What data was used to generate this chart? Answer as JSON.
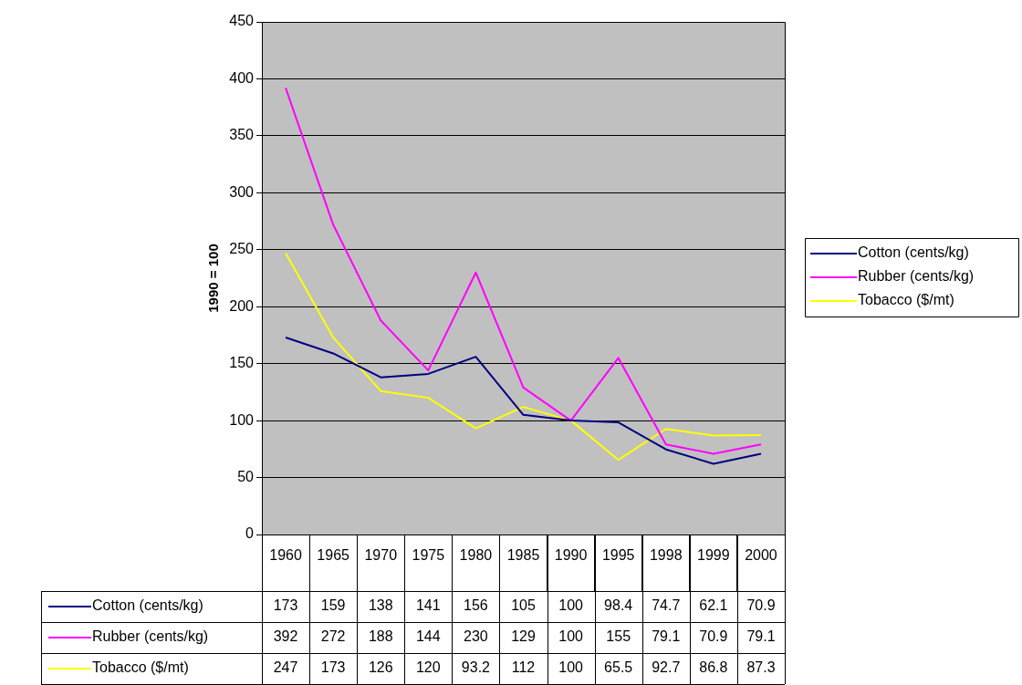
{
  "chart_data": {
    "type": "line",
    "ylabel": "1990 = 100",
    "categories": [
      "1960",
      "1965",
      "1970",
      "1975",
      "1980",
      "1985",
      "1990",
      "1995",
      "1998",
      "1999",
      "2000"
    ],
    "series": [
      {
        "name": "Cotton (cents/kg)",
        "color": "#000080",
        "values": [
          173,
          159,
          138,
          141,
          156,
          105,
          100,
          98.4,
          74.7,
          62.1,
          70.9
        ]
      },
      {
        "name": "Rubber (cents/kg)",
        "color": "#ff00ff",
        "values": [
          392,
          272,
          188,
          144,
          230,
          129,
          100,
          155,
          79.1,
          70.9,
          79.1
        ]
      },
      {
        "name": "Tobacco ($/mt)",
        "color": "#ffff00",
        "values": [
          247,
          173,
          126,
          120,
          93.2,
          112,
          100,
          65.5,
          92.7,
          86.8,
          87.3
        ]
      }
    ],
    "ylim": [
      0,
      450
    ],
    "yticks": [
      0,
      50,
      100,
      150,
      200,
      250,
      300,
      350,
      400,
      450
    ],
    "grid": "y",
    "legend": "right",
    "data_labels": true,
    "marker": "none",
    "line_style": "solid"
  }
}
